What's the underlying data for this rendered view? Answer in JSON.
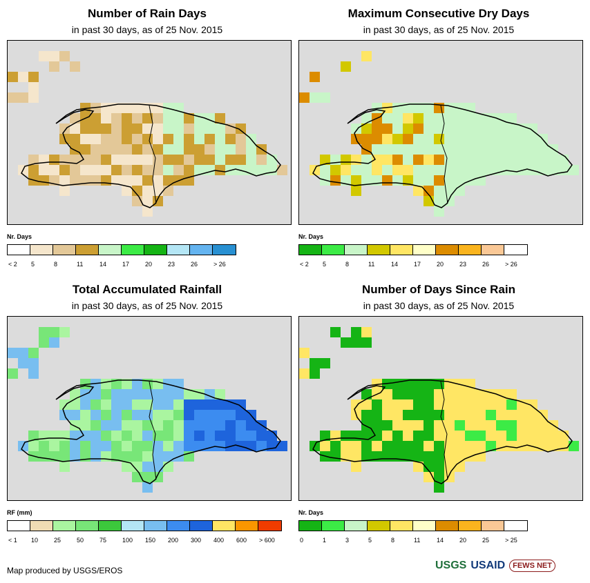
{
  "panels": [
    {
      "title": "Number of Rain Days",
      "subtitle": "in past 30 days, as of 25 Nov. 2015",
      "legend_title": "Nr. Days",
      "legend_colors": [
        "#ffffff",
        "#f5e6cc",
        "#e3c898",
        "#cc9f33",
        "#c8f5c8",
        "#3ceb46",
        "#15b415",
        "#b4e6f5",
        "#64b4f0",
        "#2890d2"
      ],
      "legend_labels": [
        "< 2",
        "5",
        "8",
        "11",
        "14",
        "17",
        "20",
        "23",
        "26",
        "> 26"
      ],
      "dominant_colors": [
        "#cc9f33",
        "#e3c898",
        "#f5e6cc",
        "#c8f5c8",
        "#3ceb46"
      ]
    },
    {
      "title": "Maximum Consecutive Dry Days",
      "subtitle": "in past 30 days, as of 25 Nov. 2015",
      "legend_title": "Nr. Days",
      "legend_colors": [
        "#15b415",
        "#3ceb46",
        "#c8f5c8",
        "#d2c800",
        "#ffe664",
        "#ffffc8",
        "#dc8c00",
        "#fab41e",
        "#fac896",
        "#ffffff"
      ],
      "legend_labels": [
        "< 2",
        "5",
        "8",
        "11",
        "14",
        "17",
        "20",
        "23",
        "26",
        "> 26"
      ],
      "dominant_colors": [
        "#c8f5c8",
        "#d2c800",
        "#ffe664",
        "#dc8c00",
        "#3ceb46"
      ]
    },
    {
      "title": "Total Accumulated Rainfall",
      "subtitle": "in past 30 days, as of 25 Nov. 2015",
      "legend_title": "RF (mm)",
      "legend_colors": [
        "#ffffff",
        "#f0dcb4",
        "#aaf5a0",
        "#78e678",
        "#3cc83c",
        "#b4e6f5",
        "#78bef0",
        "#3c8cf0",
        "#1e64dc",
        "#ffe664",
        "#fa9600",
        "#f03c00"
      ],
      "legend_labels": [
        "< 1",
        "10",
        "25",
        "50",
        "75",
        "100",
        "150",
        "200",
        "300",
        "400",
        "600",
        "> 600"
      ],
      "dominant_colors": [
        "#78e678",
        "#aaf5a0",
        "#78bef0",
        "#3c8cf0",
        "#1e64dc",
        "#3cc83c"
      ]
    },
    {
      "title": "Number of Days Since Rain",
      "subtitle": "in past 30 days, as of 25 Nov. 2015",
      "legend_title": "Nr. Days",
      "legend_colors": [
        "#15b415",
        "#3ceb46",
        "#c8f5c8",
        "#d2c800",
        "#ffe664",
        "#ffffc8",
        "#dc8c00",
        "#fab41e",
        "#fac896",
        "#ffffff"
      ],
      "legend_labels": [
        "0",
        "1",
        "3",
        "5",
        "8",
        "11",
        "14",
        "20",
        "25",
        "> 25"
      ],
      "dominant_colors": [
        "#ffe664",
        "#15b415",
        "#3ceb46",
        "#c8f5c8",
        "#d2c800"
      ]
    }
  ],
  "footer": {
    "credit": "Map produced by USGS/EROS",
    "logos": [
      "USGS",
      "USAID",
      "FEWS NET"
    ]
  }
}
